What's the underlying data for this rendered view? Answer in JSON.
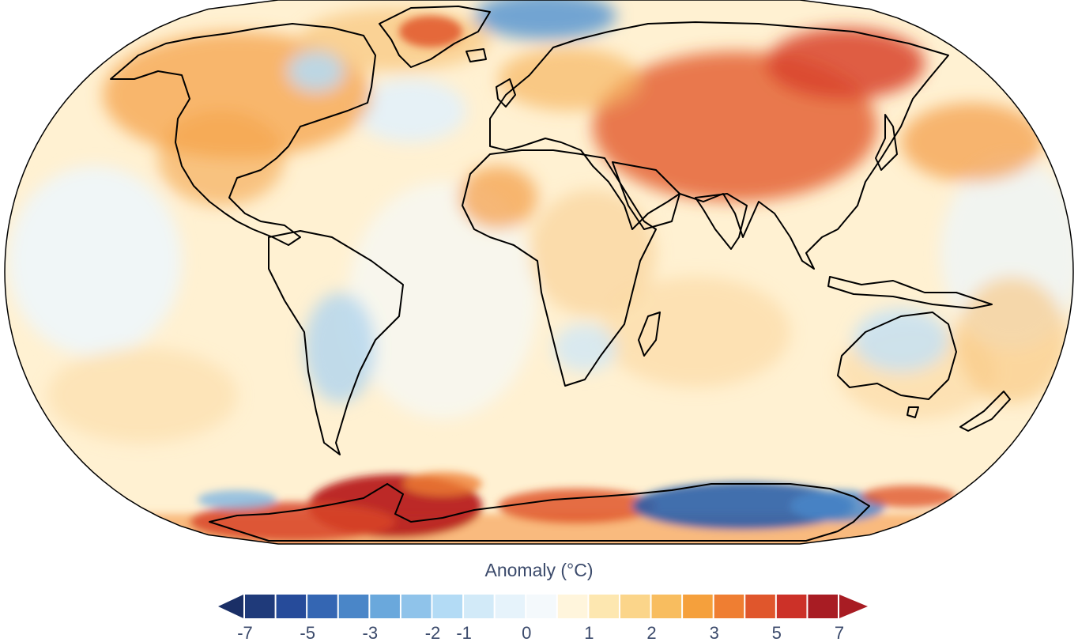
{
  "legend": {
    "title": "Anomaly (°C)",
    "ticks": [
      "-7",
      "-5",
      "-3",
      "-2",
      "-1",
      "0",
      "1",
      "2",
      "3",
      "5",
      "7"
    ],
    "bins": [
      {
        "color": "#1f3a7a"
      },
      {
        "color": "#264b9a"
      },
      {
        "color": "#3466b3"
      },
      {
        "color": "#4a86c8"
      },
      {
        "color": "#6aa8dc"
      },
      {
        "color": "#8fc3ea"
      },
      {
        "color": "#b3dbf5"
      },
      {
        "color": "#d2eaf8"
      },
      {
        "color": "#e6f3fb"
      },
      {
        "color": "#f4f9fc"
      },
      {
        "color": "#fff5dc"
      },
      {
        "color": "#fde7b0"
      },
      {
        "color": "#fbd58a"
      },
      {
        "color": "#f8bd5f"
      },
      {
        "color": "#f5a03c"
      },
      {
        "color": "#ef7e32"
      },
      {
        "color": "#e0562c"
      },
      {
        "color": "#cc3128"
      },
      {
        "color": "#a81c23"
      }
    ],
    "under_color": "#1a2f66",
    "over_color": "#a81c23"
  },
  "map": {
    "projection": "robinson",
    "base_color": "#fff1d2"
  }
}
